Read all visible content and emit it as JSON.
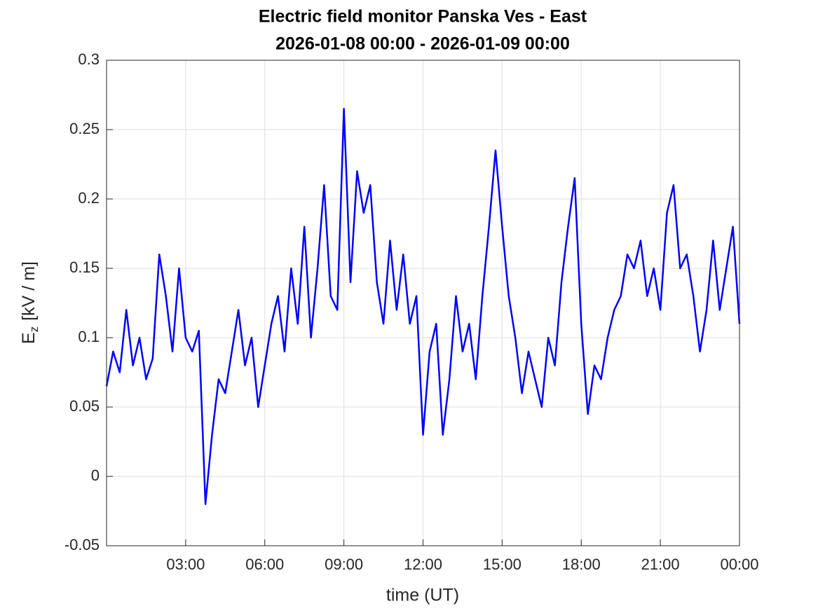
{
  "chart_data": {
    "type": "line",
    "title": [
      "Electric field monitor Panska Ves - East",
      "2026-01-08 00:00 - 2026-01-09 00:00"
    ],
    "xlabel": "time (UT)",
    "ylabel": {
      "base": "E",
      "subscript": "z",
      "unit": "[kV / m]"
    },
    "x": [
      0,
      0.25,
      0.5,
      0.75,
      1,
      1.25,
      1.5,
      1.75,
      2,
      2.25,
      2.5,
      2.75,
      3,
      3.25,
      3.5,
      3.75,
      4,
      4.25,
      4.5,
      4.75,
      5,
      5.25,
      5.5,
      5.75,
      6,
      6.25,
      6.5,
      6.75,
      7,
      7.25,
      7.5,
      7.75,
      8,
      8.25,
      8.5,
      8.75,
      9,
      9.25,
      9.5,
      9.75,
      10,
      10.25,
      10.5,
      10.75,
      11,
      11.25,
      11.5,
      11.75,
      12,
      12.25,
      12.5,
      12.75,
      13,
      13.25,
      13.5,
      13.75,
      14,
      14.25,
      14.5,
      14.75,
      15,
      15.25,
      15.5,
      15.75,
      16,
      16.25,
      16.5,
      16.75,
      17,
      17.25,
      17.5,
      17.75,
      18,
      18.25,
      18.5,
      18.75,
      19,
      19.25,
      19.5,
      19.75,
      20,
      20.25,
      20.5,
      20.75,
      21,
      21.25,
      21.5,
      21.75,
      22,
      22.25,
      22.5,
      22.75,
      23,
      23.25,
      23.5,
      23.75,
      24
    ],
    "series": [
      {
        "name": "Ez",
        "color": "#0000ff",
        "values": [
          0.065,
          0.09,
          0.075,
          0.12,
          0.08,
          0.1,
          0.07,
          0.085,
          0.16,
          0.13,
          0.09,
          0.15,
          0.1,
          0.09,
          0.105,
          -0.02,
          0.03,
          0.07,
          0.06,
          0.09,
          0.12,
          0.08,
          0.1,
          0.05,
          0.08,
          0.11,
          0.13,
          0.09,
          0.15,
          0.11,
          0.18,
          0.1,
          0.15,
          0.21,
          0.13,
          0.12,
          0.265,
          0.14,
          0.22,
          0.19,
          0.21,
          0.14,
          0.11,
          0.17,
          0.12,
          0.16,
          0.11,
          0.13,
          0.03,
          0.09,
          0.11,
          0.03,
          0.07,
          0.13,
          0.09,
          0.11,
          0.07,
          0.13,
          0.18,
          0.235,
          0.18,
          0.13,
          0.1,
          0.06,
          0.09,
          0.07,
          0.05,
          0.1,
          0.08,
          0.14,
          0.18,
          0.215,
          0.11,
          0.045,
          0.08,
          0.07,
          0.1,
          0.12,
          0.13,
          0.16,
          0.15,
          0.17,
          0.13,
          0.15,
          0.12,
          0.19,
          0.21,
          0.15,
          0.16,
          0.13,
          0.09,
          0.12,
          0.17,
          0.12,
          0.15,
          0.18,
          0.11
        ]
      }
    ],
    "xlim": [
      0,
      24
    ],
    "xticks": [
      {
        "value": 3,
        "label": "03:00"
      },
      {
        "value": 6,
        "label": "06:00"
      },
      {
        "value": 9,
        "label": "09:00"
      },
      {
        "value": 12,
        "label": "12:00"
      },
      {
        "value": 15,
        "label": "15:00"
      },
      {
        "value": 18,
        "label": "18:00"
      },
      {
        "value": 21,
        "label": "21:00"
      },
      {
        "value": 24,
        "label": "00:00"
      }
    ],
    "ylim": [
      -0.05,
      0.3
    ],
    "yticks": [
      -0.05,
      0,
      0.05,
      0.1,
      0.15,
      0.2,
      0.25,
      0.3
    ],
    "grid": true
  }
}
